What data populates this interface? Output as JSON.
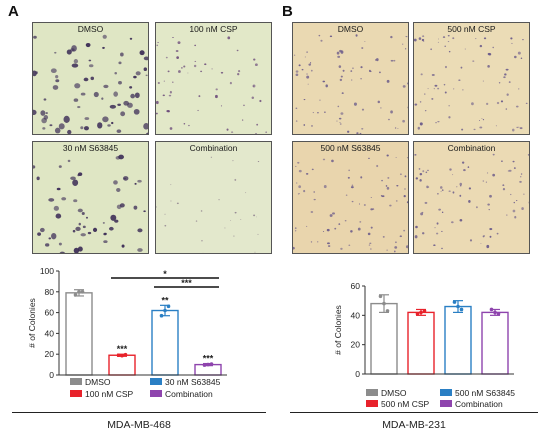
{
  "panels": [
    {
      "letter": "A",
      "cell_line": "MDA-MB-468",
      "images": [
        "DMSO",
        "100 nM CSP",
        "30 nM S63845",
        "Combination"
      ],
      "legend": [
        "DMSO",
        "100 nM CSP",
        "30 nM S63845",
        "Combination"
      ]
    },
    {
      "letter": "B",
      "cell_line": "MDA-MB-231",
      "images": [
        "DMSO",
        "500 nM CSP",
        "500 nM S63845",
        "Combination"
      ],
      "legend": [
        "DMSO",
        "500 nM CSP",
        "500 nM S63845",
        "Combination"
      ]
    }
  ],
  "colors": {
    "dmso": "#8c8c8c",
    "csp": "#e8222b",
    "s63845": "#2a7fc4",
    "combination": "#8e44ad",
    "plate_a": "#dfe6c4",
    "plate_b": "#ead9b2"
  },
  "chart_data": [
    {
      "type": "bar",
      "panel": "A",
      "categories": [
        "DMSO",
        "100 nM CSP",
        "30 nM S63845",
        "Combination"
      ],
      "values": [
        79,
        19,
        62,
        10
      ],
      "errors": [
        3,
        1,
        5,
        1
      ],
      "points": [
        [
          77,
          80,
          80
        ],
        [
          19,
          18.5,
          19.5
        ],
        [
          57,
          62,
          66
        ],
        [
          9.5,
          10,
          10.5
        ]
      ],
      "ylabel": "# of Colonies",
      "ylim": [
        0,
        100
      ],
      "yticks": [
        0,
        20,
        40,
        60,
        80,
        100
      ],
      "bar_annotations": [
        "",
        "***",
        "**",
        "***"
      ],
      "brackets": [
        {
          "from": 1,
          "to": 3,
          "label": "*"
        },
        {
          "from": 2,
          "to": 3,
          "label": "***"
        }
      ]
    },
    {
      "type": "bar",
      "panel": "B",
      "categories": [
        "DMSO",
        "500 nM CSP",
        "500 nM S63845",
        "Combination"
      ],
      "values": [
        48,
        42,
        46,
        42
      ],
      "errors": [
        6,
        2,
        4,
        2
      ],
      "points": [
        [
          53,
          48,
          43
        ],
        [
          41,
          42,
          43
        ],
        [
          49,
          46,
          44
        ],
        [
          44,
          42,
          41
        ]
      ],
      "ylabel": "# of Colonies",
      "ylim": [
        0,
        60
      ],
      "yticks": [
        0,
        20,
        40,
        60
      ]
    }
  ]
}
